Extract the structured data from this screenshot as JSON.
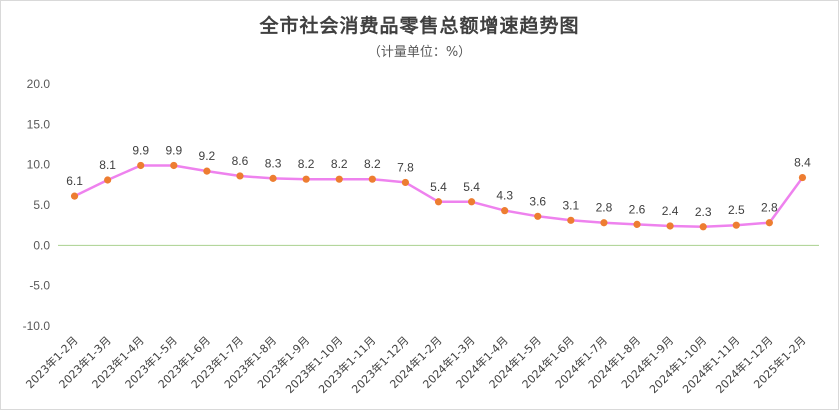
{
  "chart_data": {
    "type": "line",
    "title": "全市社会消费品零售总额增速趋势图",
    "subtitle": "（计量单位：%）",
    "xlabel": "",
    "ylabel": "",
    "ylim": [
      -10,
      20
    ],
    "yticks": [
      "20.0",
      "15.0",
      "10.0",
      "5.0",
      "0.0",
      "-5.0",
      "-10.0"
    ],
    "grid": false,
    "categories": [
      "2023年1-2月",
      "2023年1-3月",
      "2023年1-4月",
      "2023年1-5月",
      "2023年1-6月",
      "2023年1-7月",
      "2023年1-8月",
      "2023年1-9月",
      "2023年1-10月",
      "2023年1-11月",
      "2023年1-12月",
      "2024年1-2月",
      "2024年1-3月",
      "2024年1-4月",
      "2024年1-5月",
      "2024年1-6月",
      "2024年1-7月",
      "2024年1-8月",
      "2024年1-9月",
      "2024年1-10月",
      "2024年1-11月",
      "2024年1-12月",
      "2025年1-2月"
    ],
    "series": [
      {
        "values": [
          6.1,
          8.1,
          9.9,
          9.9,
          9.2,
          8.6,
          8.3,
          8.2,
          8.2,
          8.2,
          7.8,
          5.4,
          5.4,
          4.3,
          3.6,
          3.1,
          2.8,
          2.6,
          2.4,
          2.3,
          2.5,
          2.8,
          8.4
        ],
        "labels": [
          "6.1",
          "8.1",
          "9.9",
          "9.9",
          "9.2",
          "8.6",
          "8.3",
          "8.2",
          "8.2",
          "8.2",
          "7.8",
          "5.4",
          "5.4",
          "4.3",
          "3.6",
          "3.1",
          "2.8",
          "2.6",
          "2.4",
          "2.3",
          "2.5",
          "2.8",
          "8.4"
        ]
      }
    ],
    "colors": {
      "line": "#ee82ee",
      "marker": "#ed7d31",
      "zero_line": "#a9d18e"
    }
  }
}
